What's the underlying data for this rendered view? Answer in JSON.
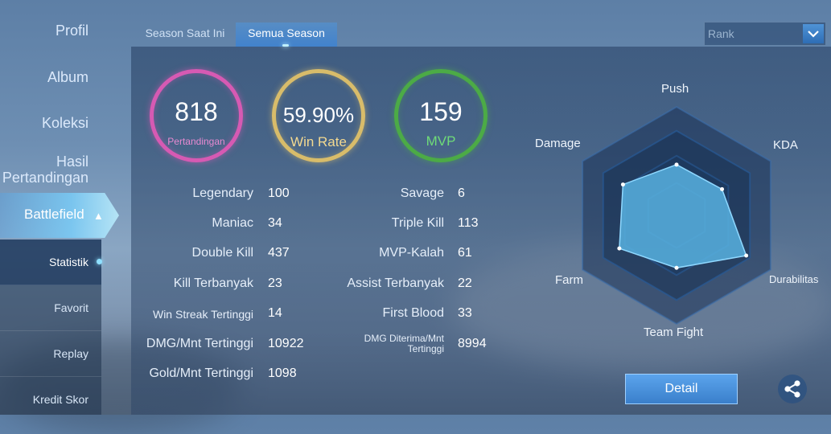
{
  "sidebar": {
    "items": [
      {
        "label": "Profil"
      },
      {
        "label": "Album"
      },
      {
        "label": "Koleksi"
      },
      {
        "label_line1": "Hasil",
        "label_line2": "Pertandingan"
      }
    ],
    "battlefield": "Battlefield",
    "sub_items": [
      {
        "label": "Statistik"
      },
      {
        "label": "Favorit"
      },
      {
        "label": "Replay"
      },
      {
        "label": "Kredit Skor"
      }
    ]
  },
  "tabs": [
    {
      "label": "Season Saat Ini"
    },
    {
      "label": "Semua Season"
    }
  ],
  "rank_select": {
    "value": "Rank"
  },
  "summary": {
    "matches": {
      "value": "818",
      "label": "Pertandingan"
    },
    "win_rate": {
      "value": "59.90%",
      "label": "Win Rate"
    },
    "mvp": {
      "value": "159",
      "label": "MVP"
    }
  },
  "stats_left": [
    {
      "label": "Legendary",
      "value": "100"
    },
    {
      "label": "Maniac",
      "value": "34"
    },
    {
      "label": "Double Kill",
      "value": "437"
    },
    {
      "label": "Kill Terbanyak",
      "value": "23"
    },
    {
      "label": "Win Streak Tertinggi",
      "value": "14"
    },
    {
      "label": "DMG/Mnt Tertinggi",
      "value": "10922"
    },
    {
      "label": "Gold/Mnt Tertinggi",
      "value": "1098"
    }
  ],
  "stats_right": [
    {
      "label": "Savage",
      "value": "6"
    },
    {
      "label": "Triple Kill",
      "value": "113"
    },
    {
      "label": "MVP-Kalah",
      "value": "61"
    },
    {
      "label": "Assist Terbanyak",
      "value": "22"
    },
    {
      "label": "First Blood",
      "value": "33"
    },
    {
      "label_line1": "DMG Diterima/Mnt",
      "label_line2": "Tertinggi",
      "value": "8994"
    }
  ],
  "radar": {
    "axes": [
      "Push",
      "KDA",
      "Durabilitas",
      "Team Fight",
      "Farm",
      "Damage"
    ],
    "levels": [
      0.6,
      0.62,
      0.95,
      0.62,
      0.78,
      0.73
    ]
  },
  "buttons": {
    "detail": "Detail"
  },
  "icons": {
    "share": "share-icon",
    "chevron": "chevron-down-icon",
    "chevron_up": "chevron-up-icon"
  },
  "colors": {
    "matches": "#d65ab3",
    "win_rate": "#d8bc6a",
    "mvp": "#4cab46",
    "accent": "#4a8fd9"
  }
}
